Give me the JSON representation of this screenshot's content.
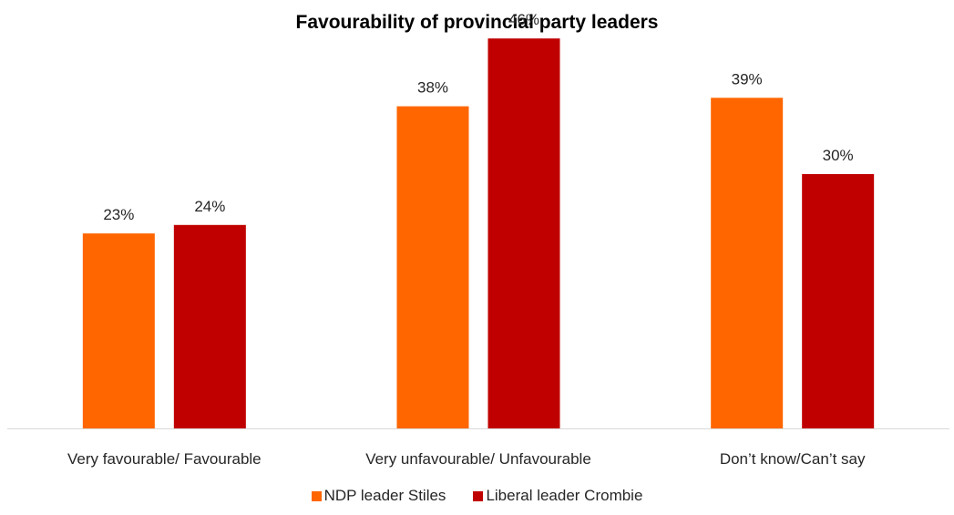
{
  "chart_data": {
    "type": "bar",
    "title": "Favourability of provincial party leaders",
    "categories": [
      "Very favourable/ Favourable",
      "Very unfavourable/ Unfavourable",
      "Don’t know/Can’t say"
    ],
    "series": [
      {
        "name": "NDP leader Stiles",
        "values": [
          23,
          38,
          39
        ],
        "labels": [
          "23%",
          "38%",
          "39%"
        ],
        "color": "#FF6600"
      },
      {
        "name": "Liberal leader Crombie",
        "values": [
          24,
          46,
          30
        ],
        "labels": [
          "24%",
          "46%",
          "30%"
        ],
        "color": "#C00000"
      }
    ],
    "ylim": [
      0,
      50
    ],
    "grid": false,
    "legend": "bottom",
    "xlabel": "",
    "ylabel": ""
  }
}
